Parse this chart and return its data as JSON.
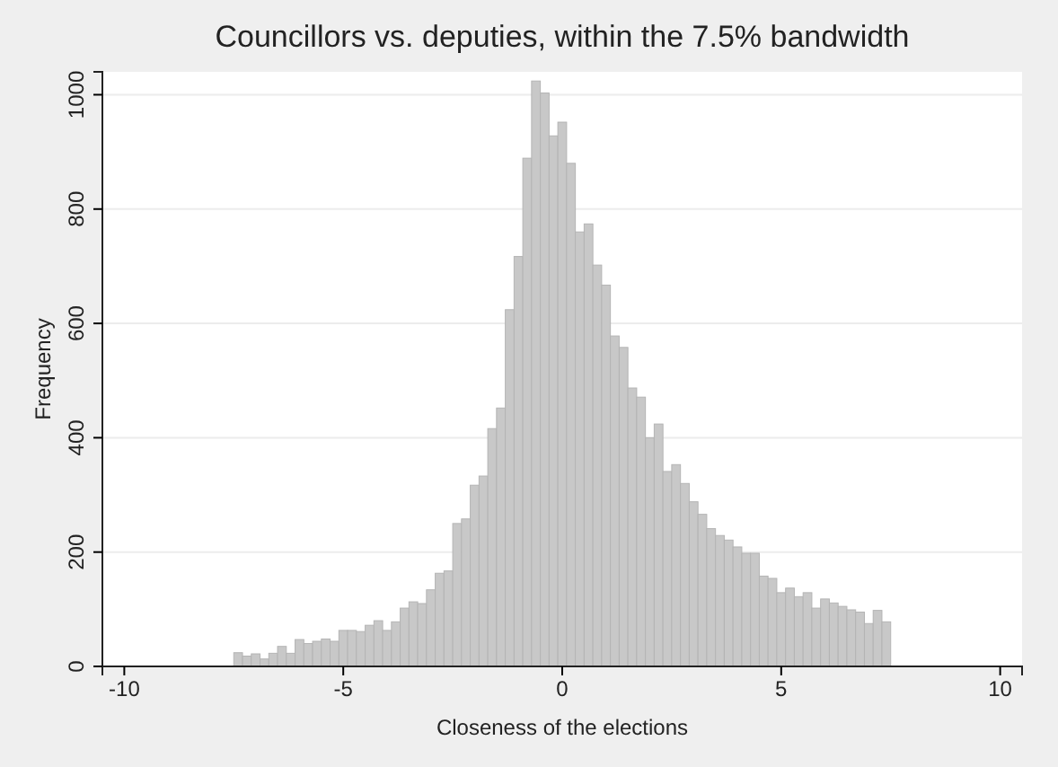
{
  "chart_data": {
    "type": "histogram",
    "title": "Councillors vs. deputies, within the 7.5% bandwidth",
    "xlabel": "Closeness of the elections",
    "ylabel": "Frequency",
    "bins": [
      -7.5,
      -7.3,
      -7.1,
      -6.9,
      -6.7,
      -6.5,
      -6.3,
      -6.1,
      -5.9,
      -5.7,
      -5.5,
      -5.3,
      -5.1,
      -4.9,
      -4.7,
      -4.5,
      -4.3,
      -4.1,
      -3.9,
      -3.7,
      -3.5,
      -3.3,
      -3.1,
      -2.9,
      -2.7,
      -2.5,
      -2.3,
      -2.1,
      -1.9,
      -1.7,
      -1.5,
      -1.3,
      -1.1,
      -0.9,
      -0.7,
      -0.5,
      -0.3,
      -0.1,
      0.1,
      0.3,
      0.5,
      0.7,
      0.9,
      1.1,
      1.3,
      1.5,
      1.7,
      1.9,
      2.1,
      2.3,
      2.5,
      2.7,
      2.9,
      3.1,
      3.3,
      3.5,
      3.7,
      3.9,
      4.1,
      4.3,
      4.5,
      4.7,
      4.9,
      5.1,
      5.3,
      5.5,
      5.7,
      5.9,
      6.1,
      6.3,
      6.5,
      6.7,
      6.9,
      7.1,
      7.3,
      7.5
    ],
    "values": [
      24,
      18,
      22,
      13,
      23,
      35,
      23,
      47,
      40,
      44,
      48,
      44,
      63,
      63,
      61,
      72,
      80,
      63,
      78,
      102,
      113,
      110,
      134,
      163,
      167,
      250,
      258,
      317,
      333,
      416,
      452,
      624,
      717,
      889,
      1024,
      1003,
      928,
      952,
      880,
      760,
      774,
      702,
      667,
      578,
      558,
      487,
      471,
      400,
      424,
      341,
      353,
      320,
      288,
      266,
      241,
      229,
      221,
      209,
      198,
      198,
      158,
      154,
      129,
      137,
      122,
      129,
      102,
      118,
      111,
      105,
      99,
      95,
      75,
      98,
      78
    ],
    "color": "#c8c8c8",
    "xlim": [
      -10.5,
      10.5
    ],
    "xticks": [
      -10,
      -5,
      0,
      5,
      10
    ],
    "ylim": [
      0,
      1040
    ],
    "yticks": [
      0,
      200,
      400,
      600,
      800,
      1000
    ],
    "grid": "y"
  }
}
